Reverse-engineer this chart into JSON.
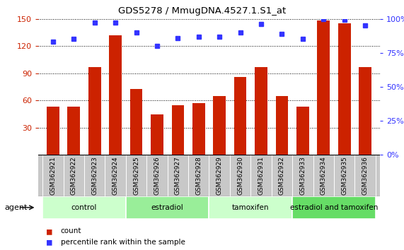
{
  "title": "GDS5278 / MmugDNA.4527.1.S1_at",
  "samples": [
    "GSM362921",
    "GSM362922",
    "GSM362923",
    "GSM362924",
    "GSM362925",
    "GSM362926",
    "GSM362927",
    "GSM362928",
    "GSM362929",
    "GSM362930",
    "GSM362931",
    "GSM362932",
    "GSM362933",
    "GSM362934",
    "GSM362935",
    "GSM362936"
  ],
  "counts": [
    53,
    53,
    97,
    132,
    73,
    45,
    55,
    57,
    65,
    86,
    97,
    65,
    53,
    148,
    145,
    97
  ],
  "percentiles": [
    83,
    85,
    97,
    97,
    90,
    80,
    86,
    87,
    87,
    90,
    96,
    89,
    85,
    100,
    99,
    95
  ],
  "bar_color": "#cc2200",
  "dot_color": "#3333ff",
  "left_ylim": [
    0,
    150
  ],
  "left_yticks": [
    30,
    60,
    90,
    120,
    150
  ],
  "right_ylim": [
    0,
    100
  ],
  "right_yticks": [
    0,
    25,
    50,
    75,
    100
  ],
  "right_yticklabels": [
    "0%",
    "25%",
    "50%",
    "75%",
    "100%"
  ],
  "groups": [
    {
      "label": "control",
      "start": 0,
      "end": 4,
      "color": "#ccffcc"
    },
    {
      "label": "estradiol",
      "start": 4,
      "end": 8,
      "color": "#99ee99"
    },
    {
      "label": "tamoxifen",
      "start": 8,
      "end": 12,
      "color": "#ccffcc"
    },
    {
      "label": "estradiol and tamoxifen",
      "start": 12,
      "end": 16,
      "color": "#66dd66"
    }
  ],
  "agent_label": "agent",
  "legend_count_label": "count",
  "legend_pct_label": "percentile rank within the sample",
  "bg_color": "#ffffff",
  "plot_bg_color": "#ffffff",
  "tick_area_color": "#c8c8c8",
  "bar_width": 0.6,
  "left_tick_color": "#cc2200",
  "right_tick_color": "#3333ff"
}
